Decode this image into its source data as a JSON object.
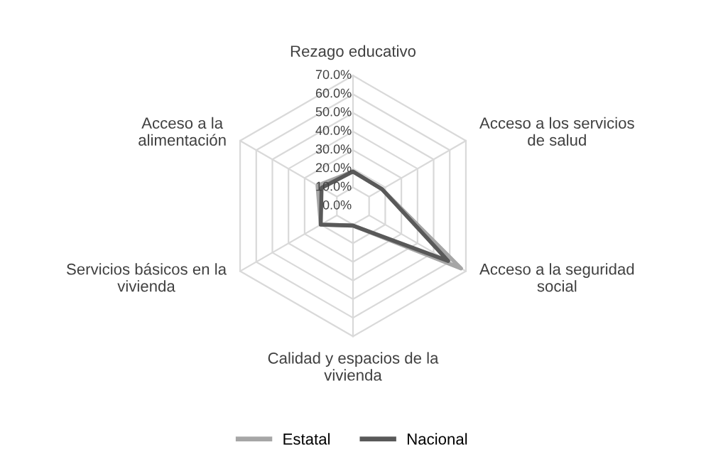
{
  "chart_data": {
    "type": "radar",
    "categories": [
      "Rezago educativo",
      "Acceso a los servicios\nde salud",
      "Acceso a la seguridad\nsocial",
      "Calidad y espacios de la\nvivienda",
      "Servicios básicos en la\nvivienda",
      "Acceso a la\nalimentación"
    ],
    "series": [
      {
        "name": "Estatal",
        "color": "#a6a6a6",
        "values": [
          0.185,
          0.18,
          0.67,
          0.105,
          0.2,
          0.22
        ]
      },
      {
        "name": "Nacional",
        "color": "#595959",
        "values": [
          0.185,
          0.18,
          0.59,
          0.105,
          0.2,
          0.195
        ]
      }
    ],
    "ylim": [
      0,
      0.7
    ],
    "yticks": [
      {
        "value": 0,
        "label": "0.0%"
      },
      {
        "value": 0.1,
        "label": "10.0%"
      },
      {
        "value": 0.2,
        "label": "20.0%"
      },
      {
        "value": 0.3,
        "label": "30.0%"
      },
      {
        "value": 0.4,
        "label": "40.0%"
      },
      {
        "value": 0.5,
        "label": "50.0%"
      },
      {
        "value": 0.6,
        "label": "60.0%"
      },
      {
        "value": 0.7,
        "label": "70.0%"
      }
    ],
    "grid": true,
    "legend": "bottom"
  }
}
